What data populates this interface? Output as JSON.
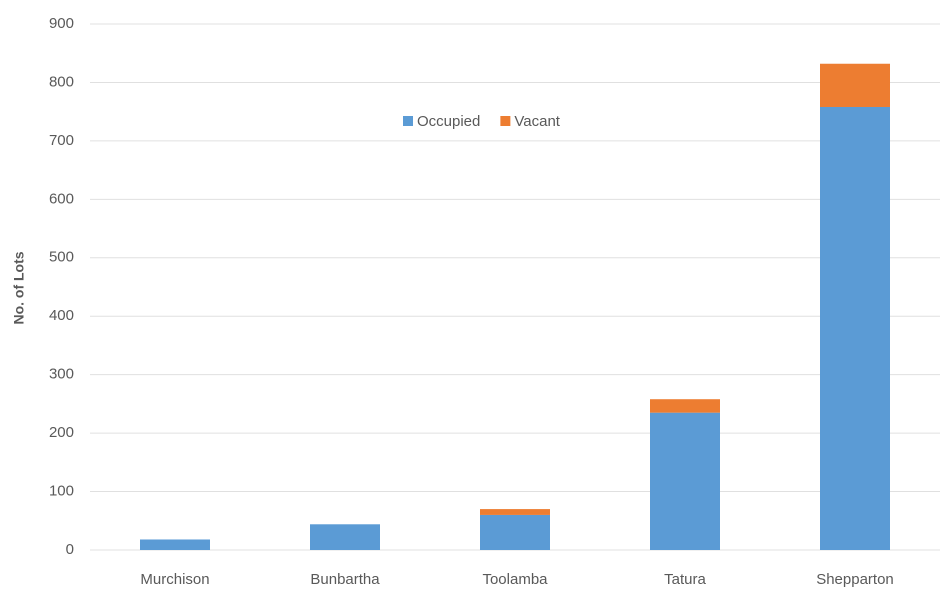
{
  "chart_data": {
    "type": "stacked_bar",
    "y_label": "No. of Lots",
    "categories": [
      "Murchison",
      "Bunbartha",
      "Toolamba",
      "Tatura",
      "Shepparton"
    ],
    "series": [
      {
        "name": "Occupied",
        "color": "#5b9bd5",
        "values": [
          18,
          44,
          60,
          235,
          758
        ]
      },
      {
        "name": "Vacant",
        "color": "#ed7d31",
        "values": [
          0,
          0,
          10,
          23,
          74
        ]
      }
    ],
    "ylim": [
      0,
      900
    ],
    "yticks": [
      0,
      100,
      200,
      300,
      400,
      500,
      600,
      700,
      800,
      900
    ],
    "grid": true,
    "legend": "top"
  }
}
